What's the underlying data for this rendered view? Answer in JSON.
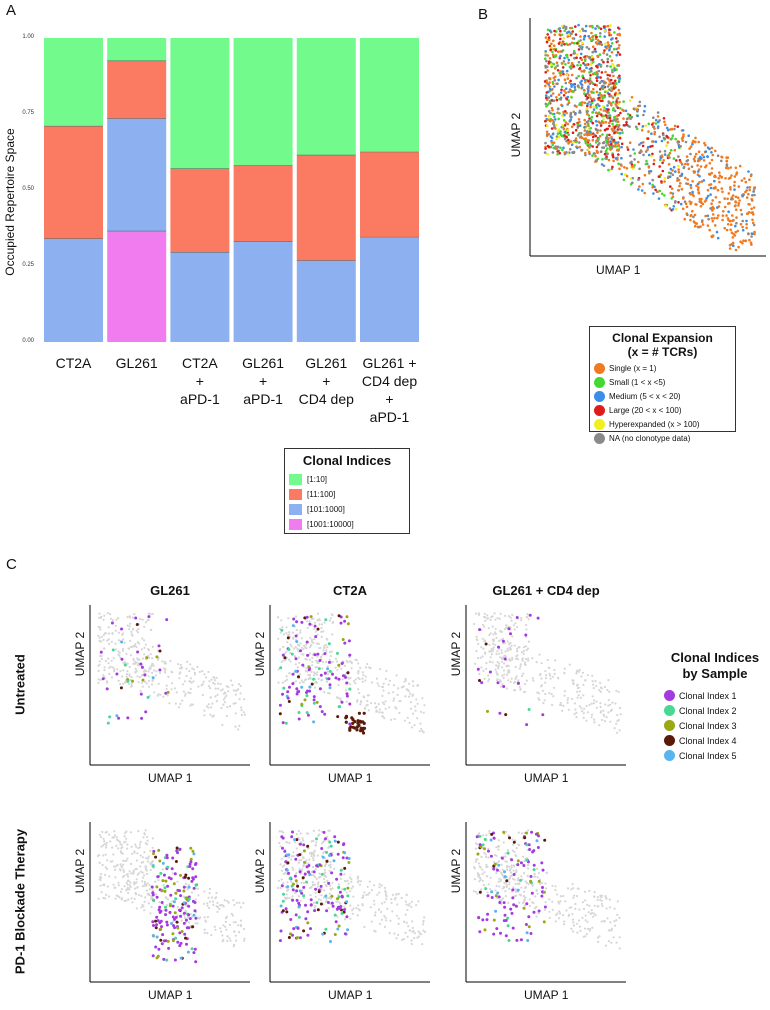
{
  "panels": {
    "a": "A",
    "b": "B",
    "c": "C"
  },
  "chart_data": [
    {
      "id": "A",
      "type": "bar",
      "stacked": true,
      "ylabel": "Occupied Repertoire Space",
      "ylim": [
        0,
        1
      ],
      "yticks": [
        "0.00",
        "0.25",
        "0.50",
        "0.75",
        "1.00"
      ],
      "categories": [
        "CT2A",
        "GL261",
        "CT2A\n+\naPD-1",
        "GL261\n+\naPD-1",
        "GL261\n+\nCD4 dep",
        "GL261 +\nCD4 dep\n+\naPD-1"
      ],
      "series": [
        {
          "name": "[1001:10000]",
          "color": "#f07cf0",
          "values": [
            0,
            0.365,
            0,
            0,
            0,
            0
          ]
        },
        {
          "name": "[101:1000]",
          "color": "#8db0f0",
          "values": [
            0.34,
            0.37,
            0.295,
            0.33,
            0.268,
            0.345
          ]
        },
        {
          "name": "[11:100]",
          "color": "#fa7a62",
          "values": [
            0.37,
            0.19,
            0.275,
            0.25,
            0.347,
            0.28
          ]
        },
        {
          "name": "[1:10]",
          "color": "#72fa8c",
          "values": [
            0.29,
            0.075,
            0.43,
            0.42,
            0.385,
            0.375
          ]
        }
      ],
      "legend_title": "Clonal Indices",
      "legend": [
        {
          "label": "[1:10]",
          "color": "#72fa8c"
        },
        {
          "label": "[11:100]",
          "color": "#fa7a62"
        },
        {
          "label": "[101:1000]",
          "color": "#8db0f0"
        },
        {
          "label": "[1001:10000]",
          "color": "#f07cf0"
        }
      ]
    },
    {
      "id": "B",
      "type": "scatter",
      "xlabel": "UMAP 1",
      "ylabel": "UMAP 2",
      "legend_title": "Clonal Expansion\n(x = # TCRs)",
      "legend": [
        {
          "label": "Single (x = 1)",
          "color": "#f07a20"
        },
        {
          "label": "Small (1 < x  <5)",
          "color": "#44d832"
        },
        {
          "label": "Medium (5 < x < 20)",
          "color": "#3a8ee8"
        },
        {
          "label": "Large (20 < x < 100)",
          "color": "#dd1c1c"
        },
        {
          "label": "Hyperexpanded (x > 100)",
          "color": "#f0f020"
        },
        {
          "label": "NA (no clonotype data)",
          "color": "#8a8a8a"
        }
      ]
    },
    {
      "id": "C",
      "type": "scatter",
      "columns": [
        "GL261",
        "CT2A",
        "GL261 + CD4 dep"
      ],
      "rows": [
        "Untreated",
        "PD-1 Blockade Therapy"
      ],
      "xlabel": "UMAP 1",
      "ylabel": "UMAP 2",
      "legend_title": "Clonal Indices\nby Sample",
      "legend": [
        {
          "label": "Clonal Index 1",
          "color": "#a53ae0"
        },
        {
          "label": "Clonal Index 2",
          "color": "#48d894"
        },
        {
          "label": "Clonal Index 3",
          "color": "#9aa812"
        },
        {
          "label": "Clonal Index 4",
          "color": "#5a1a0a"
        },
        {
          "label": "Clonal Index 5",
          "color": "#5ab4f0"
        }
      ],
      "background_color": "#d6d6d6"
    }
  ]
}
